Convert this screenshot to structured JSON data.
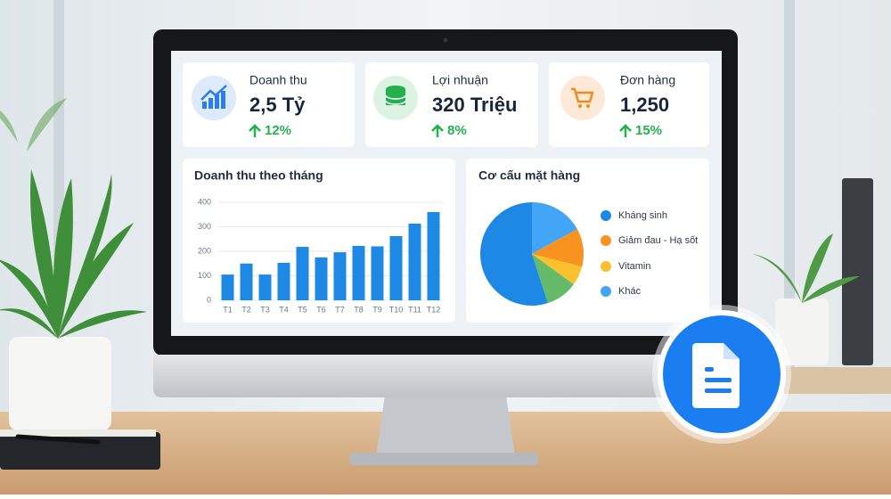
{
  "kpis": [
    {
      "label": "Doanh thu",
      "value": "2,5 Tỷ",
      "change": "12%"
    },
    {
      "label": "Lợi nhuận",
      "value": "320 Triệu",
      "change": "8%"
    },
    {
      "label": "Đơn hàng",
      "value": "1,250",
      "change": "15%"
    }
  ],
  "chart_data": [
    {
      "type": "bar",
      "title": "Doanh thu theo tháng",
      "categories": [
        "T1",
        "T2",
        "T3",
        "T4",
        "T5",
        "T6",
        "T7",
        "T8",
        "T9",
        "T10",
        "T11",
        "T12"
      ],
      "values": [
        105,
        150,
        105,
        153,
        218,
        175,
        196,
        222,
        220,
        262,
        313,
        360
      ],
      "color": "#1e88e5",
      "ylim": [
        0,
        400
      ],
      "yticks": [
        0,
        100,
        200,
        300,
        400
      ],
      "grid": true
    },
    {
      "type": "pie",
      "title": "Cơ cấu mặt hàng",
      "categories": [
        "Khác",
        "Giảm đau - Hạ sốt",
        "Vitamin",
        null,
        "Kháng sinh"
      ],
      "values": [
        17,
        12,
        6,
        10,
        55
      ],
      "colors": [
        "#42a5f5",
        "#f7931e",
        "#fbc02d",
        "#66bb6a",
        "#1e88e5"
      ]
    }
  ]
}
